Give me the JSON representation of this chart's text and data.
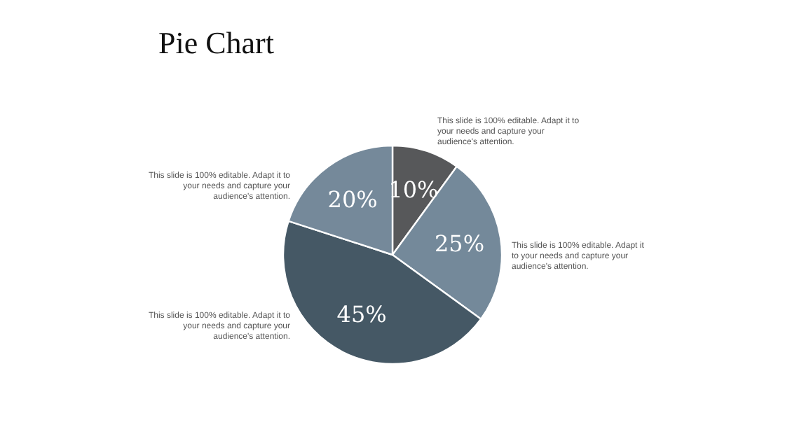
{
  "chart_data": {
    "type": "pie",
    "title": "Pie Chart",
    "categories": [
      null,
      null,
      null,
      null
    ],
    "values": [
      10,
      25,
      45,
      20
    ],
    "colors": [
      "#57585a",
      "#74899a",
      "#455865",
      "#75899a"
    ],
    "value_labels": [
      "10%",
      "25%",
      "45%",
      "20%"
    ],
    "annotations": [
      "This slide is 100% editable. Adapt it to your needs and capture your audience's attention.",
      "This slide is 100% editable. Adapt it to your needs and capture your audience's attention.",
      "This slide is 100% editable. Adapt it to your needs and capture your audience's attention.",
      "This slide is 100% editable. Adapt it to your needs and capture your audience's attention."
    ]
  }
}
